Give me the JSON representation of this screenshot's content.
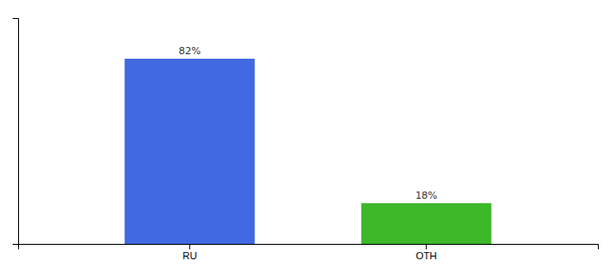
{
  "chart_data": {
    "type": "bar",
    "categories": [
      "RU",
      "OTH"
    ],
    "values": [
      82,
      18
    ],
    "value_labels": [
      "82%",
      "18%"
    ],
    "data_labels": true,
    "colors": [
      "#4169E1",
      "#3CB829"
    ],
    "ylim": [
      0,
      100
    ],
    "tick_labels": "x"
  }
}
